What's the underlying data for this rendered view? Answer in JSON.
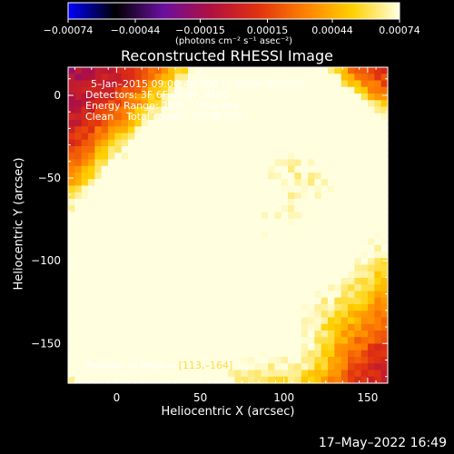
{
  "chart_data": {
    "type": "heatmap",
    "title": "Reconstructed RHESSI Image",
    "xlabel": "Heliocentric X (arcsec)",
    "ylabel": "Heliocentric Y (arcsec)",
    "xlim": [
      -29,
      162
    ],
    "ylim": [
      -174,
      17
    ],
    "x_ticks": [
      0,
      50,
      100,
      150
    ],
    "y_ticks": [
      0,
      -50,
      -100,
      -150
    ],
    "x_tick_labels": [
      "0",
      "50",
      "100",
      "150"
    ],
    "y_tick_labels": [
      "0",
      "−50",
      "−100",
      "−150"
    ],
    "colorbar": {
      "range": [
        -0.00074,
        0.00074
      ],
      "ticks": [
        -0.00074,
        -0.00044,
        -0.00015,
        0.00015,
        0.00044,
        0.00074
      ],
      "tick_labels": [
        "−0.00074",
        "−0.00044",
        "−0.00015",
        "0.00015",
        "0.00044",
        "0.00074"
      ],
      "units_label": "(photons cm⁻² s⁻¹ asec⁻²)",
      "colormap": [
        "#0000ff",
        "#000000",
        "#6a0fa0",
        "#b01040",
        "#e03010",
        "#ff8000",
        "#ffd000",
        "#ffffe0"
      ]
    },
    "annotations": {
      "time_range": "5–Jan–2015 09:00:48.000 to 09:06:48.000",
      "detectors": "Detectors: 3F 6F 7F 9F, Att 0",
      "energy": "Energy Range: 25.0 – 50.0 keV",
      "clean": "Clean    Total counts: 6.58E+03",
      "peak_prefix": "Position of Peak = ",
      "peak_value": "[113,–164]"
    },
    "peak": [
      113,
      -164
    ],
    "ridges": [
      {
        "from": [
          -29,
          -90
        ],
        "to": [
          60,
          10
        ],
        "width": 24,
        "level": 0.75
      },
      {
        "from": [
          -20,
          -150
        ],
        "to": [
          100,
          0
        ],
        "width": 26,
        "level": 0.65
      },
      {
        "from": [
          30,
          -174
        ],
        "to": [
          162,
          -60
        ],
        "width": 40,
        "level": 0.85
      },
      {
        "from": [
          100,
          10
        ],
        "to": [
          162,
          -40
        ],
        "width": 14,
        "level": 0.8
      }
    ]
  },
  "timestamp": "17–May–2022 16:49"
}
